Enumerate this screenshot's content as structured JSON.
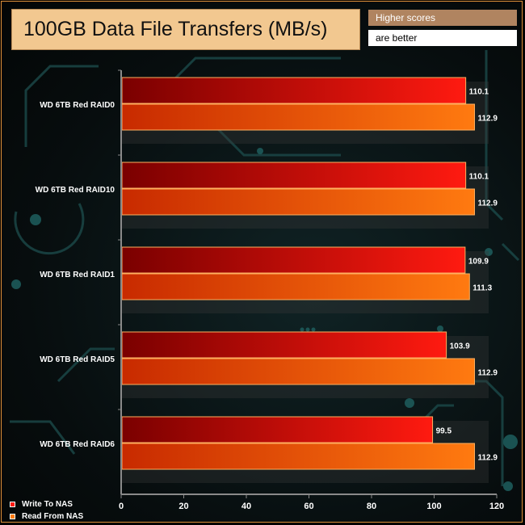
{
  "header": {
    "title": "100GB Data File Transfers (MB/s)",
    "note_top": "Higher scores",
    "note_bottom": "are better"
  },
  "colors": {
    "write_dark": "#7a0000",
    "write_light": "#ff1a10",
    "read_dark": "#c82a00",
    "read_light": "#ff7a10",
    "bar_border": "#ffb060",
    "axis": "#8a8a8a",
    "frame": "#e0913a"
  },
  "chart_data": {
    "type": "bar",
    "orientation": "horizontal",
    "categories": [
      "WD 6TB Red RAID0",
      "WD 6TB Red RAID10",
      "WD 6TB Red RAID1",
      "WD 6TB Red RAID5",
      "WD 6TB Red RAID6"
    ],
    "series": [
      {
        "name": "Write To NAS",
        "values": [
          110.1,
          110.1,
          109.9,
          103.9,
          99.5
        ]
      },
      {
        "name": "Read From NAS",
        "values": [
          112.9,
          112.9,
          111.3,
          112.9,
          112.9
        ]
      }
    ],
    "xlim": [
      0,
      120
    ],
    "xticks": [
      "0",
      "20",
      "40",
      "60",
      "80",
      "100",
      "120"
    ],
    "value_labels": [
      [
        "110.1",
        "112.9"
      ],
      [
        "110.1",
        "112.9"
      ],
      [
        "109.9",
        "111.3"
      ],
      [
        "103.9",
        "112.9"
      ],
      [
        "99.5",
        "112.9"
      ]
    ],
    "legend_position": "bottom-left",
    "grid": false
  }
}
